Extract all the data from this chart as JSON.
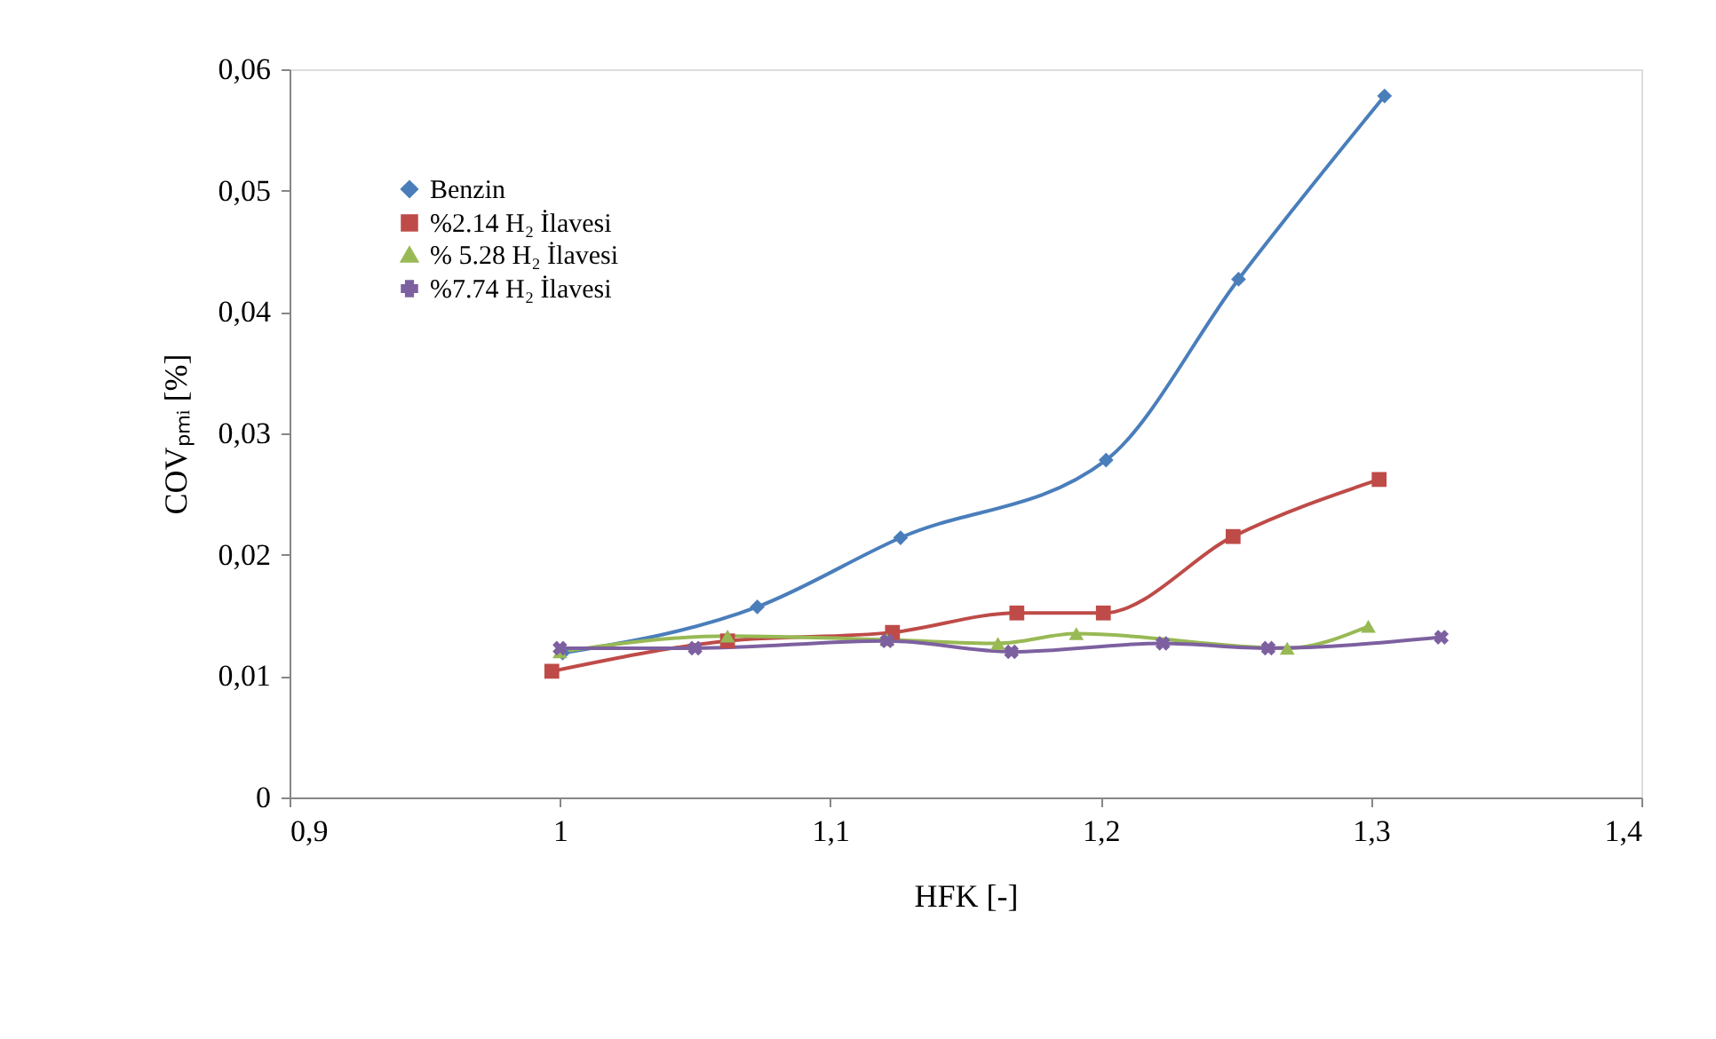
{
  "chart_data": {
    "type": "line",
    "xlabel": "HFK [-]",
    "ylabel": "COVₚₘᵢ [%]",
    "xlim": [
      0.9,
      1.4
    ],
    "ylim": [
      0,
      0.06
    ],
    "xticks": [
      {
        "value": 0.9,
        "label": "0,9"
      },
      1,
      {
        "value": 1.1,
        "label": "1,1"
      },
      {
        "value": 1.2,
        "label": "1,2"
      },
      {
        "value": 1.3,
        "label": "1,3"
      },
      {
        "value": 1.4,
        "label": "1,4"
      }
    ],
    "yticks": [
      0,
      {
        "value": 0.01,
        "label": "0,01"
      },
      {
        "value": 0.02,
        "label": "0,02"
      },
      {
        "value": 0.03,
        "label": "0,03"
      },
      {
        "value": 0.04,
        "label": "0,04"
      },
      {
        "value": 0.05,
        "label": "0,05"
      },
      {
        "value": 0.06,
        "label": "0,06"
      }
    ],
    "grid": false,
    "legend": "top left",
    "line_style": "solid",
    "series": [
      {
        "name": "Benzin",
        "color": "#4a7ebb",
        "marker": "diamond",
        "x": [
          1.001,
          1.073,
          1.126,
          1.202,
          1.251,
          1.305
        ],
        "values": [
          0.0119,
          0.0157,
          0.0214,
          0.0278,
          0.0427,
          0.0578
        ]
      },
      {
        "name": "%2.14  H₂ İlavesi",
        "color": "#be4b48",
        "marker": "square",
        "x": [
          0.997,
          1.062,
          1.123,
          1.169,
          1.201,
          1.249,
          1.303
        ],
        "values": [
          0.0104,
          0.0129,
          0.0136,
          0.0152,
          0.0152,
          0.0215,
          0.0262
        ]
      },
      {
        "name": "% 5.28 H₂ İlavesi",
        "color": "#98b954",
        "marker": "triangle",
        "x": [
          1.0,
          1.062,
          1.121,
          1.162,
          1.191,
          1.269,
          1.299
        ],
        "values": [
          0.012,
          0.0133,
          0.013,
          0.0127,
          0.0135,
          0.0123,
          0.0141
        ]
      },
      {
        "name": "%7.74  H₂ İlavesi",
        "color": "#7d60a0",
        "marker": "cross",
        "x": [
          1.0,
          1.05,
          1.121,
          1.167,
          1.223,
          1.262,
          1.326
        ],
        "values": [
          0.0123,
          0.0123,
          0.0129,
          0.012,
          0.0127,
          0.0123,
          0.0132
        ]
      }
    ]
  }
}
